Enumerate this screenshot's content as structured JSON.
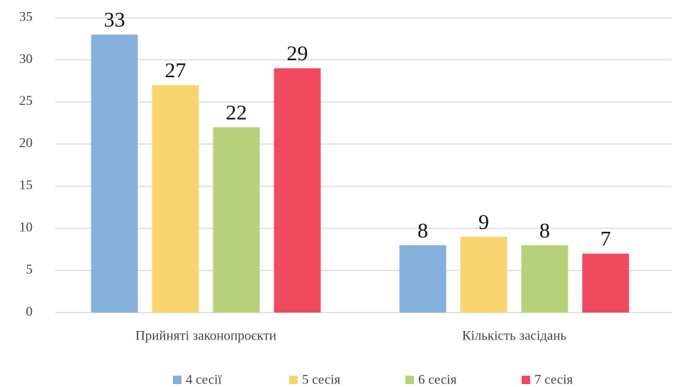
{
  "chart_data": {
    "type": "bar",
    "categories": [
      "Прийняті законопроєкти",
      "Кількість засідань"
    ],
    "series": [
      {
        "name": "4 сесії",
        "color": "#86b0dc",
        "values": [
          33,
          8
        ]
      },
      {
        "name": "5 сесія",
        "color": "#f8d46e",
        "values": [
          27,
          9
        ]
      },
      {
        "name": "6 сесія",
        "color": "#b9d07a",
        "values": [
          22,
          8
        ]
      },
      {
        "name": "7 сесія",
        "color": "#f04a5e",
        "values": [
          29,
          7
        ]
      }
    ],
    "ylim": [
      0,
      35
    ],
    "yticks": [
      0,
      5,
      10,
      15,
      20,
      25,
      30,
      35
    ],
    "grid": true,
    "legend": "bottom"
  }
}
